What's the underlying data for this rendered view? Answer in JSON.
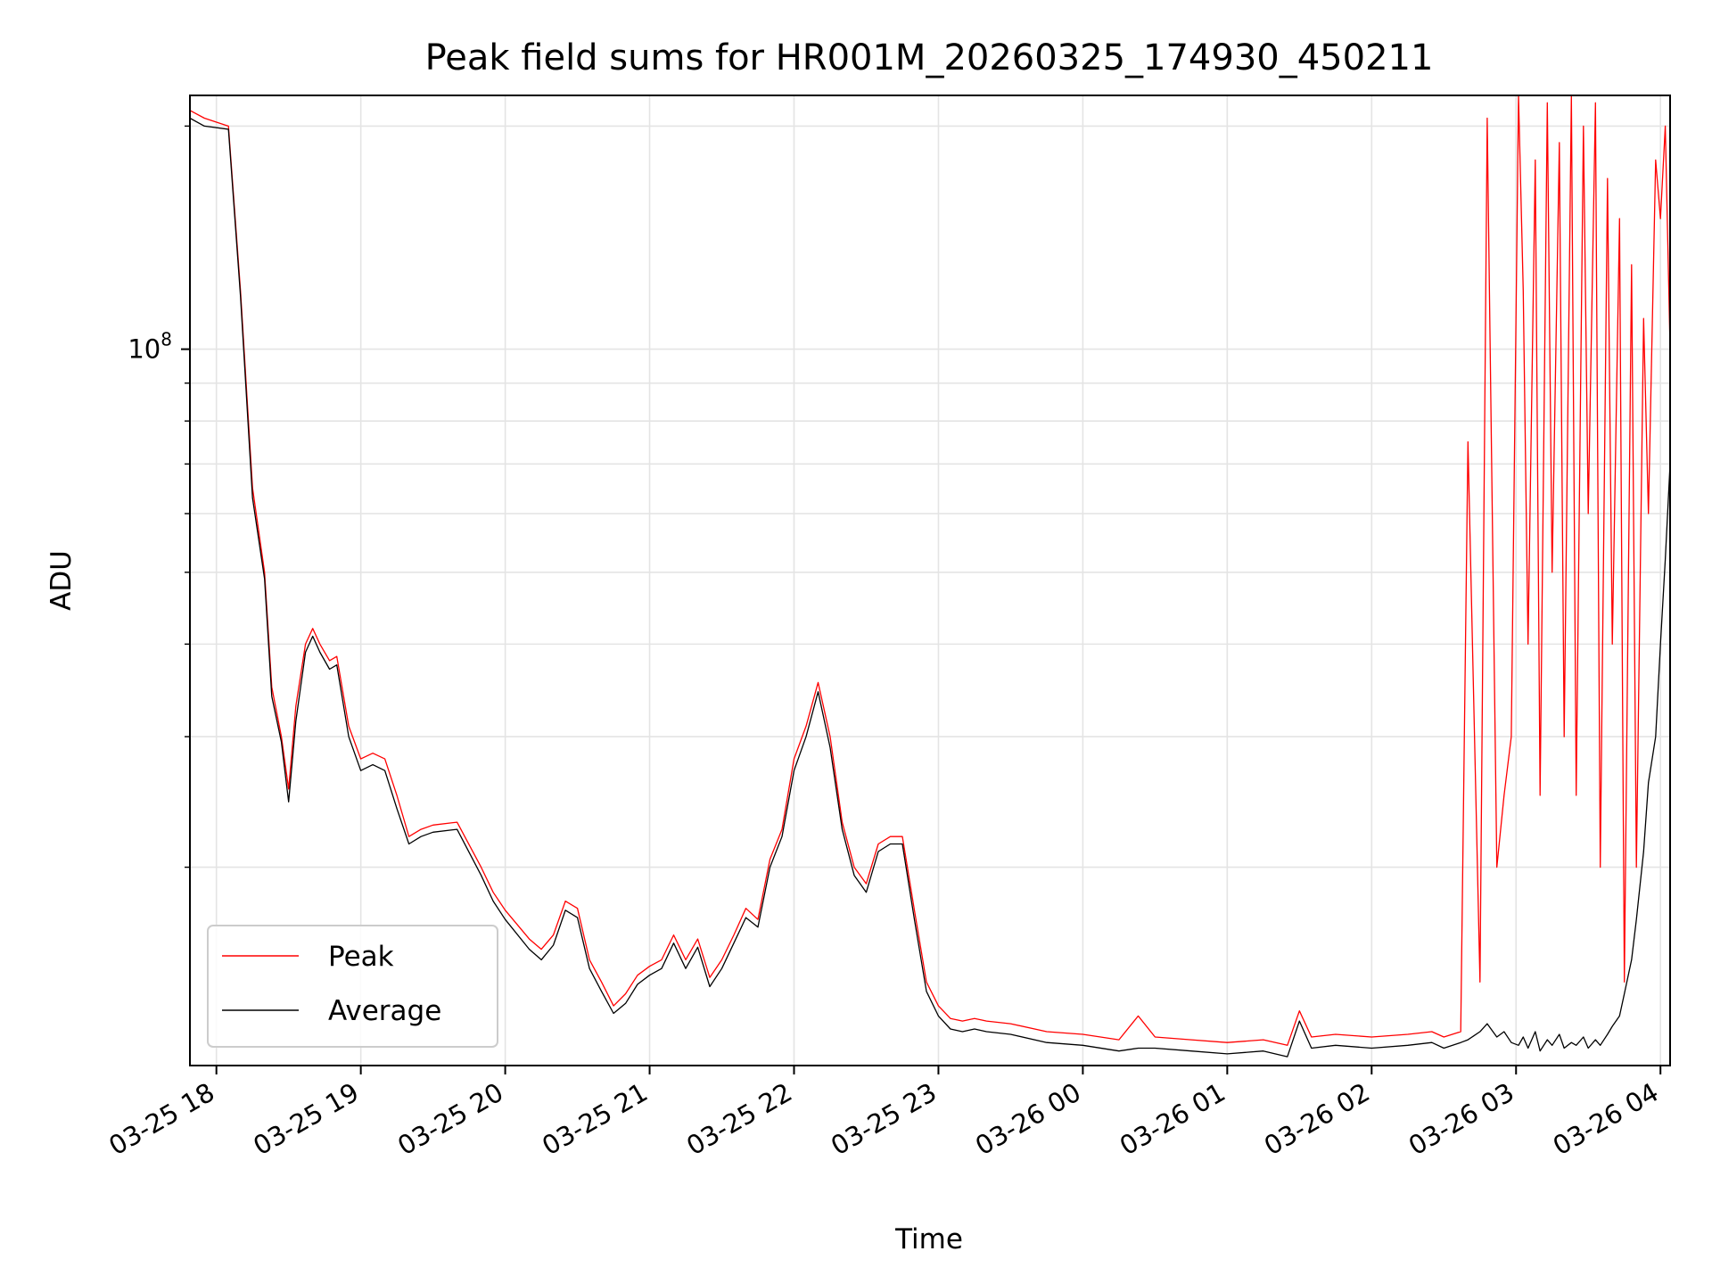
{
  "chart_data": {
    "type": "line",
    "title": "Peak field sums for HR001M_20260325_174930_450211",
    "xlabel": "Time",
    "ylabel": "ADU",
    "y_scale": "log",
    "xlim": [
      "2026-03-25 17:49",
      "2026-03-26 04:04"
    ],
    "ylim": [
      10800000,
      220000000
    ],
    "x_ticks": [
      "03-25 18",
      "03-25 19",
      "03-25 20",
      "03-25 21",
      "03-25 22",
      "03-25 23",
      "03-26 00",
      "03-26 01",
      "03-26 02",
      "03-26 03",
      "03-26 04"
    ],
    "y_ticks": [
      {
        "label": "10",
        "exponent": "8",
        "value": 100000000
      }
    ],
    "grid": true,
    "legend": {
      "placement": "lower-left"
    },
    "colors": {
      "Peak": "#ff0000",
      "Average": "#000000"
    },
    "series": [
      {
        "name": "Peak",
        "x": [
          "2026-03-25 17:49",
          "2026-03-25 17:55",
          "2026-03-25 18:05",
          "2026-03-25 18:10",
          "2026-03-25 18:15",
          "2026-03-25 18:20",
          "2026-03-25 18:23",
          "2026-03-25 18:27",
          "2026-03-25 18:30",
          "2026-03-25 18:33",
          "2026-03-25 18:37",
          "2026-03-25 18:40",
          "2026-03-25 18:43",
          "2026-03-25 18:47",
          "2026-03-25 18:50",
          "2026-03-25 18:55",
          "2026-03-25 19:00",
          "2026-03-25 19:05",
          "2026-03-25 19:10",
          "2026-03-25 19:15",
          "2026-03-25 19:20",
          "2026-03-25 19:25",
          "2026-03-25 19:30",
          "2026-03-25 19:40",
          "2026-03-25 19:50",
          "2026-03-25 19:55",
          "2026-03-25 20:00",
          "2026-03-25 20:10",
          "2026-03-25 20:15",
          "2026-03-25 20:20",
          "2026-03-25 20:25",
          "2026-03-25 20:30",
          "2026-03-25 20:35",
          "2026-03-25 20:40",
          "2026-03-25 20:45",
          "2026-03-25 20:50",
          "2026-03-25 20:55",
          "2026-03-25 21:00",
          "2026-03-25 21:05",
          "2026-03-25 21:10",
          "2026-03-25 21:15",
          "2026-03-25 21:20",
          "2026-03-25 21:25",
          "2026-03-25 21:30",
          "2026-03-25 21:35",
          "2026-03-25 21:40",
          "2026-03-25 21:45",
          "2026-03-25 21:50",
          "2026-03-25 21:55",
          "2026-03-25 22:00",
          "2026-03-25 22:05",
          "2026-03-25 22:10",
          "2026-03-25 22:15",
          "2026-03-25 22:20",
          "2026-03-25 22:25",
          "2026-03-25 22:30",
          "2026-03-25 22:35",
          "2026-03-25 22:40",
          "2026-03-25 22:45",
          "2026-03-25 22:50",
          "2026-03-25 22:55",
          "2026-03-25 23:00",
          "2026-03-25 23:05",
          "2026-03-25 23:10",
          "2026-03-25 23:15",
          "2026-03-25 23:20",
          "2026-03-25 23:30",
          "2026-03-25 23:45",
          "2026-03-26 00:00",
          "2026-03-26 00:15",
          "2026-03-26 00:23",
          "2026-03-26 00:30",
          "2026-03-26 00:45",
          "2026-03-26 01:00",
          "2026-03-26 01:15",
          "2026-03-26 01:25",
          "2026-03-26 01:30",
          "2026-03-26 01:35",
          "2026-03-26 01:45",
          "2026-03-26 02:00",
          "2026-03-26 02:15",
          "2026-03-26 02:25",
          "2026-03-26 02:30",
          "2026-03-26 02:37",
          "2026-03-26 02:40",
          "2026-03-26 02:45",
          "2026-03-26 02:48",
          "2026-03-26 02:52",
          "2026-03-26 02:55",
          "2026-03-26 02:58",
          "2026-03-26 03:01",
          "2026-03-26 03:03",
          "2026-03-26 03:05",
          "2026-03-26 03:08",
          "2026-03-26 03:10",
          "2026-03-26 03:13",
          "2026-03-26 03:15",
          "2026-03-26 03:18",
          "2026-03-26 03:20",
          "2026-03-26 03:23",
          "2026-03-26 03:25",
          "2026-03-26 03:28",
          "2026-03-26 03:30",
          "2026-03-26 03:33",
          "2026-03-26 03:35",
          "2026-03-26 03:38",
          "2026-03-26 03:40",
          "2026-03-26 03:43",
          "2026-03-26 03:45",
          "2026-03-26 03:48",
          "2026-03-26 03:50",
          "2026-03-26 03:53",
          "2026-03-26 03:55",
          "2026-03-26 03:58",
          "2026-03-26 04:00",
          "2026-03-26 04:02",
          "2026-03-26 04:04"
        ],
        "values": [
          210000000,
          205000000,
          200000000,
          120000000,
          65000000,
          50000000,
          35000000,
          30000000,
          25500000,
          33000000,
          40000000,
          42000000,
          40000000,
          38000000,
          38500000,
          31000000,
          28000000,
          28500000,
          28000000,
          25000000,
          22000000,
          22500000,
          22800000,
          23000000,
          20000000,
          18500000,
          17500000,
          16000000,
          15500000,
          16200000,
          18000000,
          17600000,
          15000000,
          14000000,
          13000000,
          13500000,
          14300000,
          14700000,
          15000000,
          16200000,
          15000000,
          16000000,
          14200000,
          15000000,
          16200000,
          17600000,
          17000000,
          20500000,
          22500000,
          28000000,
          31000000,
          35500000,
          30000000,
          23000000,
          20000000,
          19000000,
          21500000,
          22000000,
          22000000,
          17500000,
          14000000,
          13000000,
          12500000,
          12400000,
          12500000,
          12400000,
          12300000,
          12000000,
          11900000,
          11700000,
          12600000,
          11800000,
          11700000,
          11600000,
          11700000,
          11500000,
          12800000,
          11800000,
          11900000,
          11800000,
          11900000,
          12000000,
          11800000,
          12000000,
          75000000,
          14000000,
          205000000,
          20000000,
          25000000,
          30000000,
          220000000,
          120000000,
          40000000,
          180000000,
          25000000,
          215000000,
          50000000,
          190000000,
          30000000,
          220000000,
          25000000,
          200000000,
          60000000,
          215000000,
          20000000,
          170000000,
          40000000,
          150000000,
          14000000,
          130000000,
          20000000,
          110000000,
          60000000,
          180000000,
          150000000,
          200000000,
          100000000
        ]
      },
      {
        "name": "Average",
        "x": [
          "2026-03-25 17:49",
          "2026-03-25 17:55",
          "2026-03-25 18:05",
          "2026-03-25 18:10",
          "2026-03-25 18:15",
          "2026-03-25 18:20",
          "2026-03-25 18:23",
          "2026-03-25 18:27",
          "2026-03-25 18:30",
          "2026-03-25 18:33",
          "2026-03-25 18:37",
          "2026-03-25 18:40",
          "2026-03-25 18:43",
          "2026-03-25 18:47",
          "2026-03-25 18:50",
          "2026-03-25 18:55",
          "2026-03-25 19:00",
          "2026-03-25 19:05",
          "2026-03-25 19:10",
          "2026-03-25 19:15",
          "2026-03-25 19:20",
          "2026-03-25 19:25",
          "2026-03-25 19:30",
          "2026-03-25 19:40",
          "2026-03-25 19:50",
          "2026-03-25 19:55",
          "2026-03-25 20:00",
          "2026-03-25 20:10",
          "2026-03-25 20:15",
          "2026-03-25 20:20",
          "2026-03-25 20:25",
          "2026-03-25 20:30",
          "2026-03-25 20:35",
          "2026-03-25 20:40",
          "2026-03-25 20:45",
          "2026-03-25 20:50",
          "2026-03-25 20:55",
          "2026-03-25 21:00",
          "2026-03-25 21:05",
          "2026-03-25 21:10",
          "2026-03-25 21:15",
          "2026-03-25 21:20",
          "2026-03-25 21:25",
          "2026-03-25 21:30",
          "2026-03-25 21:35",
          "2026-03-25 21:40",
          "2026-03-25 21:45",
          "2026-03-25 21:50",
          "2026-03-25 21:55",
          "2026-03-25 22:00",
          "2026-03-25 22:05",
          "2026-03-25 22:10",
          "2026-03-25 22:15",
          "2026-03-25 22:20",
          "2026-03-25 22:25",
          "2026-03-25 22:30",
          "2026-03-25 22:35",
          "2026-03-25 22:40",
          "2026-03-25 22:45",
          "2026-03-25 22:50",
          "2026-03-25 22:55",
          "2026-03-25 23:00",
          "2026-03-25 23:05",
          "2026-03-25 23:10",
          "2026-03-25 23:15",
          "2026-03-25 23:20",
          "2026-03-25 23:30",
          "2026-03-25 23:45",
          "2026-03-26 00:00",
          "2026-03-26 00:15",
          "2026-03-26 00:23",
          "2026-03-26 00:30",
          "2026-03-26 00:45",
          "2026-03-26 01:00",
          "2026-03-26 01:15",
          "2026-03-26 01:25",
          "2026-03-26 01:30",
          "2026-03-26 01:35",
          "2026-03-26 01:45",
          "2026-03-26 02:00",
          "2026-03-26 02:15",
          "2026-03-26 02:25",
          "2026-03-26 02:30",
          "2026-03-26 02:37",
          "2026-03-26 02:40",
          "2026-03-26 02:45",
          "2026-03-26 02:48",
          "2026-03-26 02:52",
          "2026-03-26 02:55",
          "2026-03-26 02:58",
          "2026-03-26 03:01",
          "2026-03-26 03:03",
          "2026-03-26 03:05",
          "2026-03-26 03:08",
          "2026-03-26 03:10",
          "2026-03-26 03:13",
          "2026-03-26 03:15",
          "2026-03-26 03:18",
          "2026-03-26 03:20",
          "2026-03-26 03:23",
          "2026-03-26 03:25",
          "2026-03-26 03:28",
          "2026-03-26 03:30",
          "2026-03-26 03:33",
          "2026-03-26 03:35",
          "2026-03-26 03:38",
          "2026-03-26 03:40",
          "2026-03-26 03:43",
          "2026-03-26 03:45",
          "2026-03-26 03:48",
          "2026-03-26 03:50",
          "2026-03-26 03:53",
          "2026-03-26 03:55",
          "2026-03-26 03:58",
          "2026-03-26 04:00",
          "2026-03-26 04:02",
          "2026-03-26 04:04"
        ],
        "values": [
          205000000,
          200000000,
          198000000,
          118000000,
          63000000,
          49000000,
          34000000,
          29500000,
          24500000,
          31500000,
          39000000,
          41000000,
          39000000,
          37000000,
          37500000,
          30000000,
          27000000,
          27500000,
          27000000,
          24000000,
          21500000,
          22000000,
          22300000,
          22500000,
          19500000,
          18000000,
          17000000,
          15500000,
          15000000,
          15700000,
          17500000,
          17100000,
          14600000,
          13600000,
          12700000,
          13100000,
          13900000,
          14300000,
          14600000,
          15800000,
          14600000,
          15600000,
          13800000,
          14600000,
          15800000,
          17100000,
          16600000,
          20000000,
          22000000,
          27000000,
          30000000,
          34500000,
          29000000,
          22500000,
          19500000,
          18500000,
          21000000,
          21500000,
          21500000,
          17000000,
          13600000,
          12600000,
          12100000,
          12000000,
          12100000,
          12000000,
          11900000,
          11600000,
          11500000,
          11300000,
          11400000,
          11400000,
          11300000,
          11200000,
          11300000,
          11100000,
          12400000,
          11400000,
          11500000,
          11400000,
          11500000,
          11600000,
          11400000,
          11600000,
          11700000,
          12000000,
          12300000,
          11800000,
          12000000,
          11600000,
          11500000,
          11800000,
          11400000,
          12000000,
          11300000,
          11700000,
          11500000,
          11900000,
          11400000,
          11600000,
          11500000,
          11800000,
          11400000,
          11700000,
          11500000,
          11900000,
          12200000,
          12600000,
          13500000,
          15000000,
          17000000,
          21000000,
          26000000,
          30000000,
          40000000,
          52000000,
          70000000
        ]
      }
    ]
  }
}
